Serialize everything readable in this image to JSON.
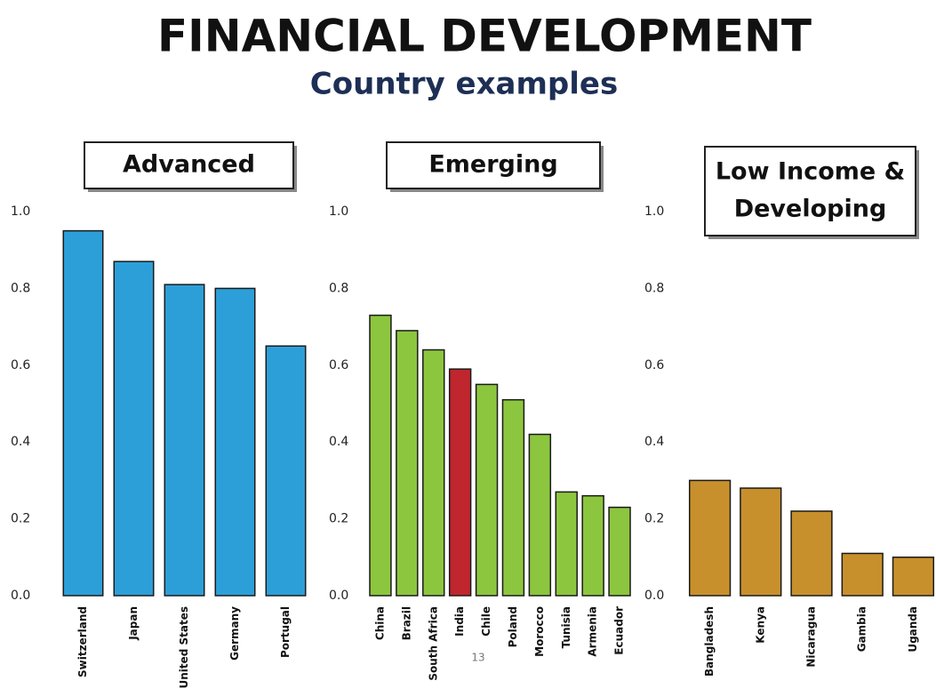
{
  "title": "FINANCIAL DEVELOPMENT",
  "subtitle": "Country examples",
  "page_number": "13",
  "chart_data": [
    {
      "type": "bar",
      "title": [
        "Advanced"
      ],
      "categories": [
        "Switzerland",
        "Japan",
        "United States",
        "Germany",
        "Portugal"
      ],
      "values": [
        0.95,
        0.87,
        0.81,
        0.8,
        0.65
      ],
      "color": "#2c9fd9",
      "ylim": [
        0,
        1
      ],
      "yticks": [
        {
          "value": 0,
          "label": "0.0"
        },
        0.2,
        0.4,
        0.6,
        0.8,
        {
          "value": 1,
          "label": "1.0"
        }
      ]
    },
    {
      "type": "bar",
      "title": [
        "Emerging"
      ],
      "categories": [
        "China",
        "Brazil",
        "South Africa",
        "India",
        "Chile",
        "Poland",
        "Morocco",
        "Tunisia",
        "Armenia",
        "Ecuador"
      ],
      "values": [
        0.73,
        0.69,
        0.64,
        0.59,
        0.55,
        0.51,
        0.42,
        0.27,
        0.26,
        0.23
      ],
      "color": "#8cc63f",
      "colors": [
        "#8cc63f",
        "#8cc63f",
        "#8cc63f",
        "#c0262d",
        "#8cc63f",
        "#8cc63f",
        "#8cc63f",
        "#8cc63f",
        "#8cc63f",
        "#8cc63f"
      ],
      "ylim": [
        0,
        1
      ],
      "yticks": [
        {
          "value": 0,
          "label": "0.0"
        },
        0.2,
        0.4,
        0.6,
        0.8,
        {
          "value": 1,
          "label": "1.0"
        }
      ]
    },
    {
      "type": "bar",
      "title": [
        "Low Income &",
        "Developing"
      ],
      "categories": [
        "Bangladesh",
        "Kenya",
        "Nicaragua",
        "Gambia",
        "Uganda"
      ],
      "values": [
        0.3,
        0.28,
        0.22,
        0.11,
        0.1
      ],
      "color": "#c8902c",
      "ylim": [
        0,
        1
      ],
      "yticks": [
        {
          "value": 0,
          "label": "0.0"
        },
        0.2,
        0.4,
        0.6,
        0.8,
        {
          "value": 1,
          "label": "1.0"
        }
      ]
    }
  ]
}
